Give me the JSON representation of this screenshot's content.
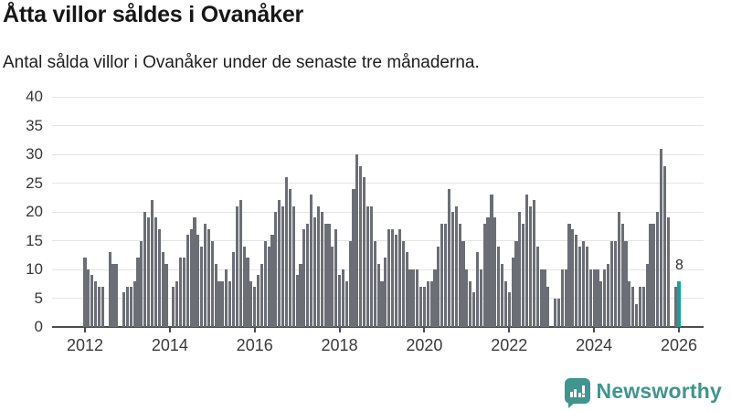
{
  "header": {
    "title": "Åtta villor såldes i Ovanåker",
    "subtitle": "Antal sålda villor i Ovanåker under de senaste tre månaderna."
  },
  "chart_data": {
    "type": "bar",
    "title": "Åtta villor såldes i Ovanåker",
    "subtitle": "Antal sålda villor i Ovanåker under de senaste tre månaderna.",
    "frequency": "monthly",
    "x_start": "2012-01",
    "x_end": "2026-01",
    "values": [
      12,
      10,
      9,
      8,
      7,
      7,
      0,
      13,
      11,
      11,
      0,
      6,
      7,
      7,
      8,
      12,
      15,
      20,
      19,
      22,
      19,
      17,
      13,
      11,
      0,
      7,
      8,
      12,
      12,
      16,
      17,
      19,
      16,
      14,
      18,
      17,
      15,
      11,
      8,
      8,
      10,
      8,
      13,
      21,
      22,
      14,
      12,
      8,
      7,
      9,
      11,
      15,
      14,
      16,
      20,
      22,
      21,
      26,
      24,
      21,
      9,
      11,
      17,
      18,
      23,
      19,
      21,
      20,
      18,
      18,
      14,
      17,
      9,
      10,
      8,
      15,
      24,
      30,
      28,
      26,
      21,
      21,
      15,
      11,
      8,
      12,
      17,
      17,
      16,
      17,
      15,
      13,
      10,
      10,
      10,
      7,
      7,
      8,
      8,
      10,
      14,
      18,
      18,
      24,
      20,
      21,
      18,
      15,
      10,
      8,
      6,
      13,
      10,
      18,
      19,
      23,
      19,
      14,
      11,
      8,
      6,
      12,
      15,
      20,
      18,
      23,
      21,
      22,
      14,
      10,
      10,
      7,
      0,
      5,
      5,
      10,
      10,
      18,
      17,
      16,
      14,
      15,
      14,
      10,
      10,
      10,
      8,
      10,
      11,
      15,
      15,
      20,
      18,
      15,
      8,
      7,
      4,
      7,
      7,
      11,
      18,
      18,
      20,
      31,
      28,
      19,
      0,
      7,
      8
    ],
    "highlight_last": {
      "value": 8,
      "label": "8"
    },
    "bar_color": "#6b6e75",
    "highlight_color": "#12a3a1",
    "ylim": [
      0,
      40
    ],
    "y_ticks": [
      "0",
      "5",
      "10",
      "15",
      "20",
      "25",
      "30",
      "35",
      "40"
    ],
    "x_tick_years": [
      "2012",
      "2014",
      "2016",
      "2018",
      "2020",
      "2022",
      "2024",
      "2026"
    ],
    "grid": true,
    "legend": "none"
  },
  "branding": {
    "name": "Newsworthy",
    "color": "#3e968f",
    "icon": "newsworthy-speech-bubble-bar-chart-icon"
  }
}
